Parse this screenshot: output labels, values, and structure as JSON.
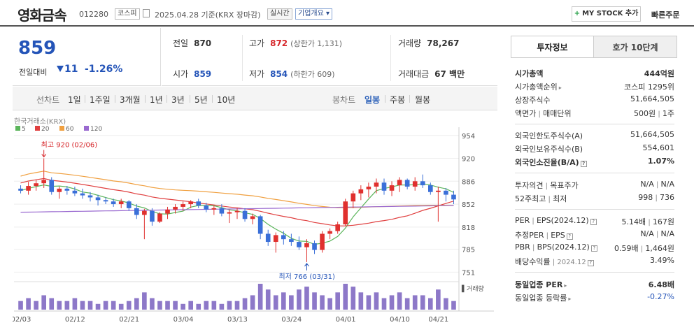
{
  "header": {
    "company": "영화금속",
    "code": "012280",
    "market": "코스피",
    "date": "2025.04.28 기준(KRX 장마감)",
    "live": "실시간",
    "company_info": "기업개요",
    "mystock": "MY STOCK 추가",
    "quick_order": "빠른주문"
  },
  "price": {
    "current": "859",
    "change_label": "전일대비",
    "change": "11",
    "change_pct": "-1.26%"
  },
  "stats": {
    "prev_label": "전일",
    "prev": "870",
    "high_label": "고가",
    "high": "872",
    "high_limit": "(상한가 1,131)",
    "volume_label": "거래량",
    "volume": "78,267",
    "open_label": "시가",
    "open": "859",
    "low_label": "저가",
    "low": "854",
    "low_limit": "(하한가 609)",
    "amount_label": "거래대금",
    "amount": "67 백만"
  },
  "period_tabs": {
    "line_chart": "선차트",
    "line_items": [
      "1일",
      "1주일",
      "3개월",
      "1년",
      "3년",
      "5년",
      "10년"
    ],
    "candle_chart": "봉차트",
    "candle_items": [
      "일봉",
      "주봉",
      "월봉"
    ],
    "active_candle": "일봉"
  },
  "chart_data": {
    "type": "candlestick",
    "source_label": "한국거래소(KRX)",
    "ma_legend": [
      {
        "name": "5",
        "color": "#5bb55b"
      },
      {
        "name": "20",
        "color": "#e04040"
      },
      {
        "name": "60",
        "color": "#f0a040"
      },
      {
        "name": "120",
        "color": "#9a6ad0"
      }
    ],
    "y_ticks": [
      "954",
      "920",
      "886",
      "852",
      "818",
      "785",
      "751"
    ],
    "y_min": 740,
    "y_max": 960,
    "x_ticks": [
      "02/03",
      "02/12",
      "02/21",
      "03/04",
      "03/13",
      "03/24",
      "04/01",
      "04/10",
      "04/21"
    ],
    "high_annotation": "최고 920 (02/06)",
    "low_annotation": "최저 766 (03/31)",
    "volume_label": "거래량",
    "candles": [
      [
        875,
        880,
        868,
        872
      ],
      [
        872,
        885,
        866,
        879
      ],
      [
        879,
        888,
        872,
        883
      ],
      [
        883,
        920,
        876,
        888
      ],
      [
        888,
        892,
        866,
        870
      ],
      [
        870,
        878,
        860,
        875
      ],
      [
        875,
        879,
        866,
        872
      ],
      [
        872,
        878,
        864,
        868
      ],
      [
        868,
        875,
        860,
        865
      ],
      [
        865,
        870,
        856,
        862
      ],
      [
        862,
        866,
        850,
        858
      ],
      [
        858,
        862,
        852,
        856
      ],
      [
        856,
        860,
        848,
        852
      ],
      [
        852,
        860,
        846,
        856
      ],
      [
        856,
        858,
        842,
        846
      ],
      [
        846,
        852,
        830,
        836
      ],
      [
        836,
        845,
        800,
        842
      ],
      [
        842,
        846,
        820,
        826
      ],
      [
        826,
        840,
        824,
        838
      ],
      [
        838,
        848,
        830,
        844
      ],
      [
        844,
        852,
        838,
        848
      ],
      [
        848,
        856,
        842,
        852
      ],
      [
        852,
        858,
        846,
        856
      ],
      [
        856,
        860,
        846,
        850
      ],
      [
        850,
        854,
        840,
        844
      ],
      [
        844,
        850,
        836,
        846
      ],
      [
        846,
        852,
        834,
        838
      ],
      [
        838,
        844,
        824,
        840
      ],
      [
        840,
        846,
        830,
        842
      ],
      [
        842,
        846,
        826,
        830
      ],
      [
        830,
        838,
        822,
        834
      ],
      [
        834,
        836,
        800,
        808
      ],
      [
        808,
        814,
        790,
        796
      ],
      [
        796,
        810,
        780,
        806
      ],
      [
        806,
        812,
        792,
        800
      ],
      [
        800,
        808,
        790,
        796
      ],
      [
        796,
        804,
        784,
        788
      ],
      [
        788,
        800,
        766,
        794
      ],
      [
        794,
        798,
        778,
        784
      ],
      [
        784,
        812,
        780,
        808
      ],
      [
        808,
        816,
        800,
        812
      ],
      [
        812,
        826,
        808,
        822
      ],
      [
        822,
        860,
        820,
        856
      ],
      [
        856,
        872,
        846,
        868
      ],
      [
        868,
        880,
        858,
        874
      ],
      [
        874,
        884,
        862,
        878
      ],
      [
        878,
        890,
        868,
        884
      ],
      [
        884,
        890,
        866,
        872
      ],
      [
        872,
        886,
        864,
        880
      ],
      [
        880,
        892,
        870,
        888
      ],
      [
        888,
        890,
        874,
        878
      ],
      [
        878,
        892,
        872,
        886
      ],
      [
        886,
        896,
        876,
        880
      ],
      [
        880,
        884,
        866,
        870
      ],
      [
        870,
        878,
        826,
        872
      ],
      [
        872,
        876,
        856,
        866
      ],
      [
        866,
        872,
        852,
        859
      ]
    ],
    "volumes": [
      3,
      4,
      3,
      5,
      4,
      3,
      3,
      4,
      3,
      3,
      2,
      3,
      3,
      2,
      3,
      4,
      6,
      4,
      3,
      3,
      3,
      2,
      3,
      2,
      3,
      3,
      2,
      3,
      3,
      4,
      5,
      9,
      7,
      5,
      6,
      5,
      7,
      8,
      6,
      5,
      4,
      6,
      9,
      8,
      6,
      5,
      6,
      4,
      5,
      6,
      4,
      5,
      5,
      4,
      7,
      4,
      3
    ]
  },
  "invest": {
    "tab_on": "투자정보",
    "tab_off": "호가 10단계",
    "market_cap_label": "시가총액",
    "market_cap": "444억원",
    "rank_label": "시가총액순위",
    "rank": "코스피 1295위",
    "shares_label": "상장주식수",
    "shares": "51,664,505",
    "par_label": "액면가",
    "trade_unit_label": "매매단위",
    "par": "500원",
    "trade_unit": "1주",
    "foreign_limit_label": "외국인한도주식수(A)",
    "foreign_limit": "51,664,505",
    "foreign_hold_label": "외국인보유주식수(B)",
    "foreign_hold": "554,601",
    "foreign_ratio_label": "외국인소진율(B/A)",
    "foreign_ratio": "1.07%",
    "opinion_label": "투자의견",
    "target_label": "목표주가",
    "opinion": "N/A",
    "target": "N/A",
    "wk52_high_label": "52주최고",
    "wk52_low_label": "최저",
    "wk52_high": "998",
    "wk52_low": "736",
    "per_label": "PER",
    "eps_label": "EPS(2024.12)",
    "per": "5.14배",
    "eps": "167원",
    "est_per_label": "추정PER",
    "est_eps_label": "EPS",
    "est_per": "N/A",
    "est_eps": "N/A",
    "pbr_label": "PBR",
    "bps_label": "BPS(2024.12)",
    "pbr": "0.59배",
    "bps": "1,464원",
    "div_label": "배당수익률",
    "div_date": "2024.12",
    "div": "3.49%",
    "ind_per_label": "동일업종 PER",
    "ind_per": "6.48배",
    "ind_rate_label": "동일업종 등락률",
    "ind_rate": "-0.27%"
  }
}
